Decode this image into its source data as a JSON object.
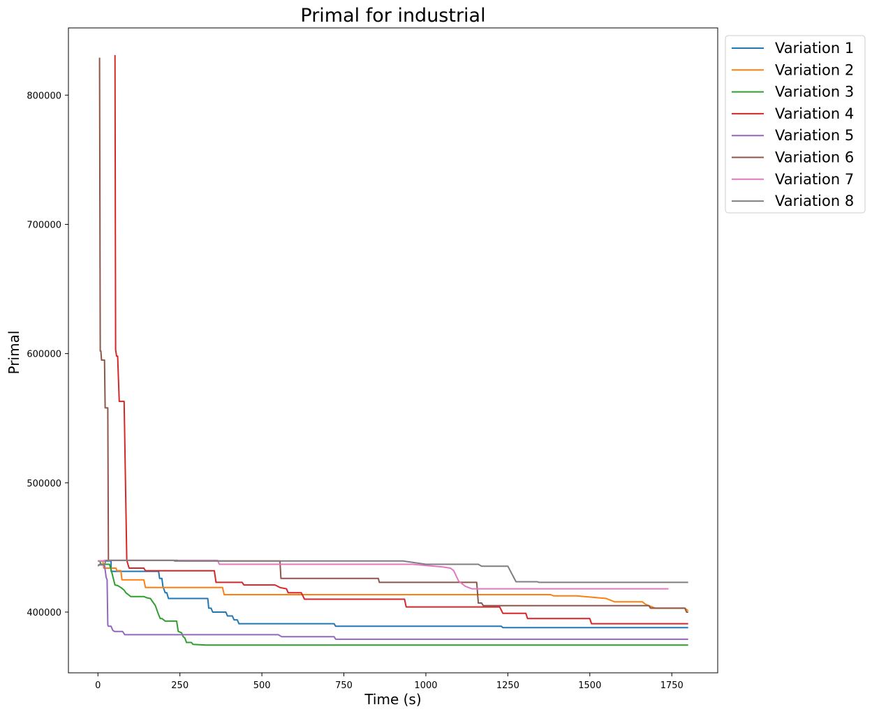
{
  "chart_data": {
    "type": "line",
    "title": "Primal for industrial",
    "xlabel": "Time (s)",
    "ylabel": "Primal",
    "xlim": [
      -90,
      1890
    ],
    "ylim": [
      353000,
      852000
    ],
    "xticks": [
      0,
      250,
      500,
      750,
      1000,
      1250,
      1500,
      1750
    ],
    "yticks": [
      400000,
      500000,
      600000,
      700000,
      800000
    ],
    "grid": false,
    "legend_position": "outside-top-right",
    "series": [
      {
        "name": "Variation 1",
        "color": "#1f77b4",
        "points": [
          [
            0,
            439500
          ],
          [
            40,
            439500
          ],
          [
            40,
            431500
          ],
          [
            185,
            431500
          ],
          [
            188,
            426000
          ],
          [
            195,
            426000
          ],
          [
            198,
            420000
          ],
          [
            205,
            415000
          ],
          [
            210,
            415000
          ],
          [
            215,
            410500
          ],
          [
            335,
            410500
          ],
          [
            338,
            403000
          ],
          [
            345,
            403000
          ],
          [
            350,
            400000
          ],
          [
            390,
            400000
          ],
          [
            395,
            397000
          ],
          [
            410,
            397000
          ],
          [
            415,
            394000
          ],
          [
            425,
            394000
          ],
          [
            430,
            391000
          ],
          [
            720,
            391000
          ],
          [
            725,
            389000
          ],
          [
            1230,
            389000
          ],
          [
            1235,
            388000
          ],
          [
            1800,
            388000
          ]
        ]
      },
      {
        "name": "Variation 2",
        "color": "#ff7f0e",
        "points": [
          [
            0,
            439500
          ],
          [
            15,
            439500
          ],
          [
            18,
            434000
          ],
          [
            55,
            434000
          ],
          [
            58,
            432000
          ],
          [
            70,
            432000
          ],
          [
            73,
            425000
          ],
          [
            140,
            425000
          ],
          [
            145,
            419000
          ],
          [
            380,
            419000
          ],
          [
            385,
            413500
          ],
          [
            1380,
            413500
          ],
          [
            1390,
            412500
          ],
          [
            1460,
            412500
          ],
          [
            1550,
            410500
          ],
          [
            1575,
            408000
          ],
          [
            1660,
            408000
          ],
          [
            1670,
            406000
          ],
          [
            1700,
            403000
          ],
          [
            1790,
            403000
          ],
          [
            1800,
            401000
          ]
        ]
      },
      {
        "name": "Variation 3",
        "color": "#2ca02c",
        "points": [
          [
            0,
            439500
          ],
          [
            5,
            439500
          ],
          [
            10,
            437000
          ],
          [
            35,
            437000
          ],
          [
            40,
            433000
          ],
          [
            48,
            425000
          ],
          [
            52,
            421000
          ],
          [
            60,
            420500
          ],
          [
            70,
            419000
          ],
          [
            80,
            417000
          ],
          [
            85,
            415000
          ],
          [
            95,
            413000
          ],
          [
            100,
            412000
          ],
          [
            140,
            412000
          ],
          [
            150,
            411000
          ],
          [
            160,
            410500
          ],
          [
            175,
            405000
          ],
          [
            185,
            398000
          ],
          [
            190,
            395000
          ],
          [
            195,
            395000
          ],
          [
            205,
            393000
          ],
          [
            240,
            393000
          ],
          [
            245,
            385000
          ],
          [
            255,
            384000
          ],
          [
            260,
            381000
          ],
          [
            265,
            380000
          ],
          [
            270,
            376500
          ],
          [
            285,
            376500
          ],
          [
            290,
            375000
          ],
          [
            330,
            374500
          ],
          [
            1800,
            374500
          ]
        ]
      },
      {
        "name": "Variation 4",
        "color": "#d62728",
        "points": [
          [
            52,
            831000
          ],
          [
            54,
            603000
          ],
          [
            57,
            598000
          ],
          [
            60,
            598000
          ],
          [
            65,
            563000
          ],
          [
            80,
            563000
          ],
          [
            88,
            440000
          ],
          [
            95,
            434000
          ],
          [
            140,
            434000
          ],
          [
            145,
            432000
          ],
          [
            355,
            432000
          ],
          [
            360,
            423000
          ],
          [
            440,
            423000
          ],
          [
            445,
            421000
          ],
          [
            540,
            421000
          ],
          [
            555,
            419000
          ],
          [
            575,
            418000
          ],
          [
            580,
            415000
          ],
          [
            620,
            415000
          ],
          [
            630,
            410000
          ],
          [
            935,
            410000
          ],
          [
            940,
            404000
          ],
          [
            1225,
            404000
          ],
          [
            1235,
            399000
          ],
          [
            1305,
            399000
          ],
          [
            1310,
            395000
          ],
          [
            1500,
            395000
          ],
          [
            1505,
            391000
          ],
          [
            1800,
            391000
          ]
        ]
      },
      {
        "name": "Variation 5",
        "color": "#9467bd",
        "points": [
          [
            0,
            436500
          ],
          [
            20,
            436500
          ],
          [
            25,
            427000
          ],
          [
            28,
            425000
          ],
          [
            30,
            390000
          ],
          [
            32,
            389000
          ],
          [
            40,
            389000
          ],
          [
            45,
            386000
          ],
          [
            50,
            385000
          ],
          [
            75,
            385000
          ],
          [
            82,
            382500
          ],
          [
            550,
            382500
          ],
          [
            560,
            381000
          ],
          [
            720,
            381000
          ],
          [
            725,
            379000
          ],
          [
            1800,
            379000
          ]
        ]
      },
      {
        "name": "Variation 6",
        "color": "#8c564b",
        "points": [
          [
            5,
            829000
          ],
          [
            7,
            602000
          ],
          [
            9,
            602000
          ],
          [
            11,
            595000
          ],
          [
            20,
            595000
          ],
          [
            22,
            558000
          ],
          [
            30,
            558000
          ],
          [
            32,
            440000
          ],
          [
            230,
            440000
          ],
          [
            235,
            439500
          ],
          [
            555,
            439500
          ],
          [
            558,
            426000
          ],
          [
            855,
            426000
          ],
          [
            858,
            423000
          ],
          [
            1155,
            423000
          ],
          [
            1160,
            407000
          ],
          [
            1170,
            407000
          ],
          [
            1175,
            405000
          ],
          [
            1680,
            405000
          ],
          [
            1685,
            403000
          ],
          [
            1790,
            403000
          ],
          [
            1795,
            400000
          ],
          [
            1800,
            400000
          ]
        ]
      },
      {
        "name": "Variation 7",
        "color": "#e377c2",
        "points": [
          [
            0,
            439500
          ],
          [
            15,
            439500
          ],
          [
            20,
            440000
          ],
          [
            365,
            440000
          ],
          [
            370,
            437000
          ],
          [
            960,
            437000
          ],
          [
            1050,
            435000
          ],
          [
            1075,
            434000
          ],
          [
            1085,
            432000
          ],
          [
            1100,
            424000
          ],
          [
            1120,
            420000
          ],
          [
            1140,
            418000
          ],
          [
            1160,
            418000
          ],
          [
            1740,
            418000
          ]
        ]
      },
      {
        "name": "Variation 8",
        "color": "#7f7f7f",
        "points": [
          [
            0,
            435500
          ],
          [
            5,
            437000
          ],
          [
            20,
            437000
          ],
          [
            25,
            440000
          ],
          [
            240,
            440000
          ],
          [
            250,
            439500
          ],
          [
            930,
            439500
          ],
          [
            1000,
            437000
          ],
          [
            1160,
            437000
          ],
          [
            1170,
            435500
          ],
          [
            1250,
            435500
          ],
          [
            1275,
            423500
          ],
          [
            1340,
            423500
          ],
          [
            1345,
            423000
          ],
          [
            1800,
            423000
          ]
        ]
      }
    ]
  }
}
